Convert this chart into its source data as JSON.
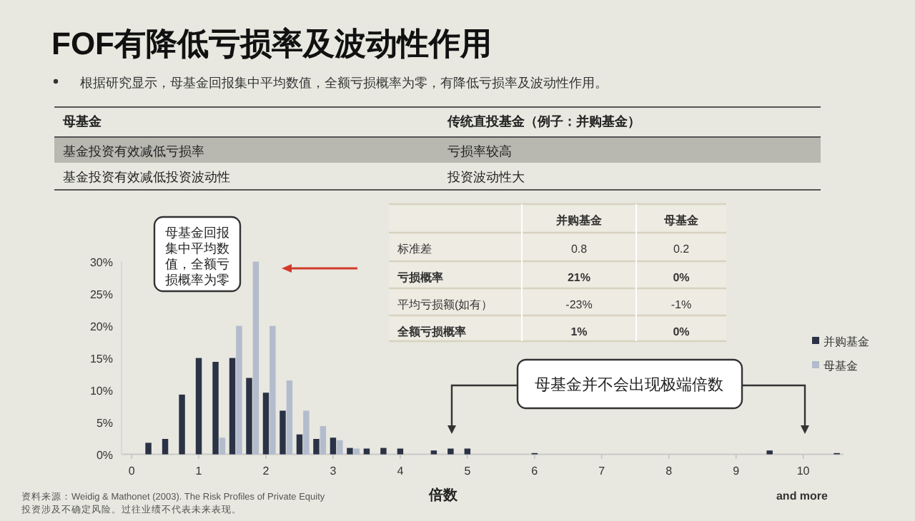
{
  "chart_data": [
    {
      "type": "other",
      "title": "FOF有降低亏损率及波动性作用",
      "subtitle": "根据研究显示，母基金回报集中平均数值，全额亏损概率为零，有降低亏损率及波动性作用。",
      "annotations": [
        "母基金",
        "传统直投基金（例子：并购基金）",
        "基金投资有效减低亏损率",
        "亏损率较高",
        "基金投资有效减低投资波动性",
        "投资波动性大"
      ]
    },
    {
      "type": "bar",
      "xlabel": "倍数",
      "xlim": [
        -0.15,
        10.6
      ],
      "xticks": [
        0,
        1,
        2,
        3,
        4,
        5,
        6,
        7,
        8,
        9,
        10
      ],
      "ylim": [
        0,
        30
      ],
      "yticks": [
        {
          "value": 0,
          "label": "0%"
        },
        {
          "value": 5,
          "label": "5%"
        },
        {
          "value": 10,
          "label": "10%"
        },
        {
          "value": 15,
          "label": "15%"
        },
        {
          "value": 20,
          "label": "20%"
        },
        {
          "value": 25,
          "label": "25%"
        },
        {
          "value": 30,
          "label": "30%"
        }
      ],
      "legend": "right",
      "series": [
        {
          "name": "并购基金",
          "color": "#2b3245",
          "x": [
            0.25,
            0.5,
            0.75,
            1.0,
            1.25,
            1.5,
            1.75,
            2.0,
            2.25,
            2.5,
            2.75,
            3.0,
            3.25,
            3.5,
            3.75,
            4.0,
            4.5,
            4.75,
            5.0,
            6.0,
            9.5,
            10.5
          ],
          "values": [
            1.8,
            2.4,
            9.3,
            15.0,
            14.4,
            15.0,
            11.9,
            9.6,
            6.8,
            3.1,
            2.4,
            2.6,
            1.0,
            0.9,
            1.0,
            0.9,
            0.6,
            0.9,
            0.9,
            0.2,
            0.6,
            0.2
          ]
        },
        {
          "name": "母基金",
          "color": "#b3bccc",
          "x": [
            1.35,
            1.6,
            1.85,
            2.1,
            2.35,
            2.6,
            2.85,
            3.1,
            3.35
          ],
          "values": [
            2.6,
            20.0,
            30.0,
            20.0,
            11.5,
            6.8,
            4.4,
            2.2,
            0.9
          ]
        }
      ],
      "annotations": [
        "母基金回报集中平均数值，全额亏损概率为零",
        "母基金并不会出现极端倍数",
        "and more",
        "资料来源：Weidig & Mathonet (2003). The Risk Profiles of Private Equity",
        "投资涉及不确定风险。过往业绩不代表未来表现。"
      ]
    },
    {
      "type": "other",
      "annotations": [
        "并购基金",
        "母基金",
        "标准差",
        "0.8",
        "0.2",
        "亏损概率",
        "21%",
        "0%",
        "平均亏损额(如有）",
        "-23%",
        "-1%",
        "全额亏损概率",
        "1%",
        "0%"
      ]
    }
  ]
}
